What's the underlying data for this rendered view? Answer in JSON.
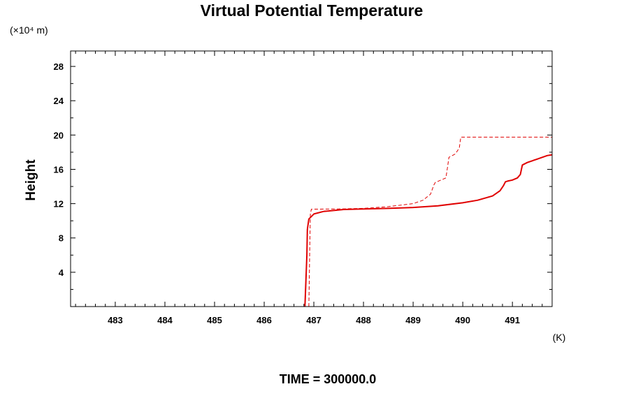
{
  "chart_data": {
    "type": "line",
    "title": "Virtual Potential Temperature",
    "ylabel": "Height",
    "y_unit_label": "(×10⁴ m)",
    "x_unit_label": "(K)",
    "footer": "TIME = 300000.0",
    "xlim": [
      482.1,
      491.8
    ],
    "ylim": [
      0,
      29.8
    ],
    "x_ticks": [
      483,
      484,
      485,
      486,
      487,
      488,
      489,
      490,
      491
    ],
    "x_tick_labels": [
      "483",
      "484",
      "485",
      "486",
      "487",
      "488",
      "489",
      "490",
      "491"
    ],
    "y_ticks": [
      4,
      8,
      12,
      16,
      20,
      24,
      28
    ],
    "y_tick_labels": [
      "4",
      "8",
      "12",
      "16",
      "20",
      "24",
      "28"
    ],
    "grid": false,
    "colors": {
      "series": "#e00000"
    },
    "series": [
      {
        "style": "solid",
        "x": [
          486.82,
          486.84,
          486.86,
          486.87,
          486.9,
          487.0,
          487.2,
          487.6,
          488.0,
          488.5,
          489.0,
          489.5,
          490.0,
          490.3,
          490.6,
          490.75,
          490.82,
          490.86,
          490.9,
          491.0,
          491.1,
          491.16,
          491.2,
          491.3,
          491.5,
          491.7,
          491.8
        ],
        "y": [
          0,
          3.0,
          6.0,
          9.0,
          10.2,
          10.8,
          11.1,
          11.32,
          11.38,
          11.45,
          11.55,
          11.75,
          12.1,
          12.4,
          12.9,
          13.5,
          14.1,
          14.55,
          14.62,
          14.75,
          15.0,
          15.4,
          16.5,
          16.8,
          17.2,
          17.6,
          17.7
        ]
      },
      {
        "style": "dashed",
        "x": [
          486.9,
          486.91,
          486.92,
          486.93,
          486.95,
          487.5,
          488.0,
          488.5,
          489.0,
          489.2,
          489.35,
          489.42,
          489.45,
          489.5,
          489.66,
          489.7,
          489.72,
          489.85,
          489.93,
          489.96,
          491.8
        ],
        "y": [
          0,
          4.0,
          8.0,
          10.8,
          11.35,
          11.38,
          11.45,
          11.65,
          12.0,
          12.4,
          13.1,
          14.2,
          14.5,
          14.6,
          15.0,
          16.5,
          17.4,
          17.8,
          18.5,
          19.75,
          19.75
        ]
      }
    ]
  }
}
